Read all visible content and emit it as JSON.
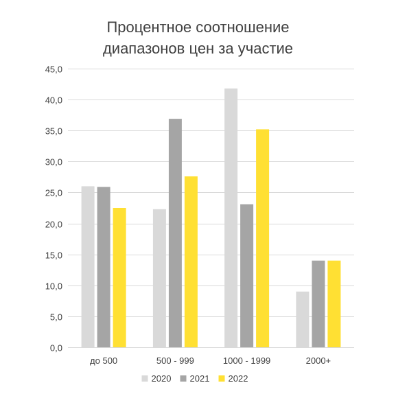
{
  "chart_data": {
    "type": "bar",
    "title_lines": [
      "Процентное соотношение",
      "диапазонов цен за участие"
    ],
    "categories": [
      "до 500",
      "500 - 999",
      "1000 - 1999",
      "2000+"
    ],
    "series": [
      {
        "name": "2020",
        "color": "#d9d9d9",
        "values": [
          26.0,
          22.3,
          41.8,
          9.0
        ]
      },
      {
        "name": "2021",
        "color": "#a5a5a5",
        "values": [
          25.9,
          36.9,
          23.1,
          14.0
        ]
      },
      {
        "name": "2022",
        "color": "#ffe033",
        "values": [
          22.5,
          27.6,
          35.2,
          14.0
        ]
      }
    ],
    "ylim": [
      0,
      45
    ],
    "ytick_step": 5,
    "ytick_labels": [
      "0,0",
      "5,0",
      "10,0",
      "15,0",
      "20,0",
      "25,0",
      "30,0",
      "35,0",
      "40,0",
      "45,0"
    ],
    "grid": true,
    "gridline_color": "#d9d9d9",
    "legend_position": "bottom"
  }
}
